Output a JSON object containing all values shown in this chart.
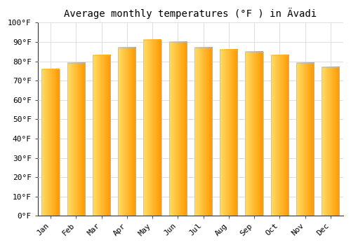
{
  "title": "Average monthly temperatures (°F ) in Ävadi",
  "months": [
    "Jan",
    "Feb",
    "Mar",
    "Apr",
    "May",
    "Jun",
    "Jul",
    "Aug",
    "Sep",
    "Oct",
    "Nov",
    "Dec"
  ],
  "values": [
    76,
    79,
    83,
    87,
    91,
    90,
    87,
    86,
    85,
    83,
    79,
    77
  ],
  "bar_color_left": "#FFDD66",
  "bar_color_right": "#FF9900",
  "bar_edge_color": "#BBBBBB",
  "ylim": [
    0,
    100
  ],
  "yticks": [
    0,
    10,
    20,
    30,
    40,
    50,
    60,
    70,
    80,
    90,
    100
  ],
  "ytick_labels": [
    "0°F",
    "10°F",
    "20°F",
    "30°F",
    "40°F",
    "50°F",
    "60°F",
    "70°F",
    "80°F",
    "90°F",
    "100°F"
  ],
  "background_color": "#FFFFFF",
  "grid_color": "#DDDDDD",
  "title_fontsize": 10,
  "tick_fontsize": 8,
  "font_family": "monospace",
  "bar_width": 0.7,
  "n_gradient": 50
}
